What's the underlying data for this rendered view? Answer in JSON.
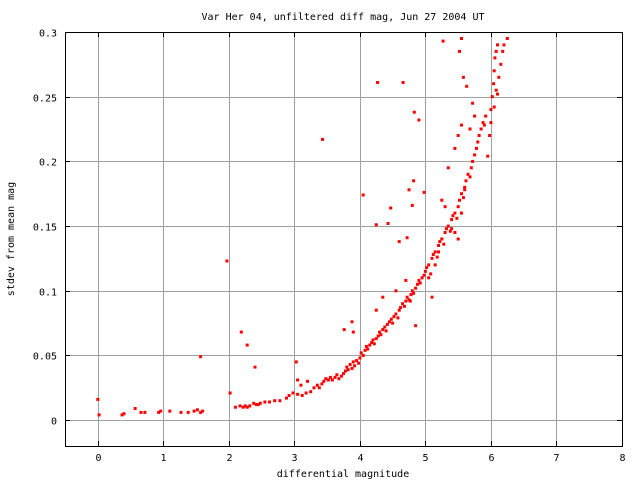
{
  "chart_data": {
    "type": "scatter",
    "title": "Var Her 04, unfiltered diff mag, Jun 27 2004 UT",
    "xlabel": "differential magnitude",
    "ylabel": "stdev from mean mag",
    "xlim": [
      -0.5,
      8
    ],
    "ylim": [
      -0.02,
      0.3
    ],
    "xticks": [
      0,
      1,
      2,
      3,
      4,
      5,
      6,
      7,
      8
    ],
    "yticks": [
      0,
      0.05,
      0.1,
      0.15,
      0.2,
      0.25,
      0.3
    ],
    "xtick_labels": [
      "0",
      "1",
      "2",
      "3",
      "4",
      "5",
      "6",
      "7",
      "8"
    ],
    "ytick_labels": [
      "0",
      "0.05",
      "0.1",
      "0.15",
      "0.2",
      "0.25",
      "0.3"
    ],
    "grid": true,
    "marker_color": "#ff0000",
    "series": [
      {
        "points": [
          [
            0.0,
            0.016
          ],
          [
            0.02,
            0.004
          ],
          [
            0.37,
            0.004
          ],
          [
            0.4,
            0.005
          ],
          [
            0.57,
            0.009
          ],
          [
            0.66,
            0.006
          ],
          [
            0.72,
            0.006
          ],
          [
            0.93,
            0.006
          ],
          [
            0.96,
            0.007
          ],
          [
            1.1,
            0.007
          ],
          [
            1.27,
            0.006
          ],
          [
            1.38,
            0.006
          ],
          [
            1.47,
            0.007
          ],
          [
            1.52,
            0.008
          ],
          [
            1.57,
            0.006
          ],
          [
            1.6,
            0.007
          ],
          [
            1.57,
            0.049
          ],
          [
            1.97,
            0.123
          ],
          [
            2.02,
            0.021
          ],
          [
            2.1,
            0.01
          ],
          [
            2.17,
            0.011
          ],
          [
            2.22,
            0.01
          ],
          [
            2.25,
            0.011
          ],
          [
            2.28,
            0.01
          ],
          [
            2.32,
            0.011
          ],
          [
            2.38,
            0.013
          ],
          [
            2.42,
            0.012
          ],
          [
            2.45,
            0.012
          ],
          [
            2.48,
            0.013
          ],
          [
            2.4,
            0.041
          ],
          [
            2.19,
            0.068
          ],
          [
            2.28,
            0.058
          ],
          [
            2.55,
            0.014
          ],
          [
            2.62,
            0.014
          ],
          [
            2.7,
            0.015
          ],
          [
            2.78,
            0.015
          ],
          [
            2.88,
            0.017
          ],
          [
            2.92,
            0.019
          ],
          [
            2.98,
            0.021
          ],
          [
            3.03,
            0.045
          ],
          [
            3.05,
            0.031
          ],
          [
            3.1,
            0.027
          ],
          [
            3.05,
            0.02
          ],
          [
            3.12,
            0.019
          ],
          [
            3.18,
            0.021
          ],
          [
            3.2,
            0.03
          ],
          [
            3.25,
            0.022
          ],
          [
            3.3,
            0.025
          ],
          [
            3.35,
            0.027
          ],
          [
            3.38,
            0.025
          ],
          [
            3.42,
            0.028
          ],
          [
            3.45,
            0.03
          ],
          [
            3.48,
            0.032
          ],
          [
            3.52,
            0.031
          ],
          [
            3.55,
            0.033
          ],
          [
            3.58,
            0.031
          ],
          [
            3.62,
            0.033
          ],
          [
            3.65,
            0.035
          ],
          [
            3.68,
            0.032
          ],
          [
            3.72,
            0.034
          ],
          [
            3.75,
            0.036
          ],
          [
            3.78,
            0.038
          ],
          [
            3.8,
            0.041
          ],
          [
            3.82,
            0.039
          ],
          [
            3.85,
            0.043
          ],
          [
            3.88,
            0.04
          ],
          [
            3.9,
            0.045
          ],
          [
            3.92,
            0.042
          ],
          [
            3.95,
            0.046
          ],
          [
            3.98,
            0.044
          ],
          [
            4.0,
            0.048
          ],
          [
            3.43,
            0.217
          ],
          [
            3.76,
            0.07
          ],
          [
            3.88,
            0.076
          ],
          [
            3.9,
            0.068
          ],
          [
            4.02,
            0.052
          ],
          [
            4.05,
            0.05
          ],
          [
            4.08,
            0.054
          ],
          [
            4.1,
            0.057
          ],
          [
            4.12,
            0.055
          ],
          [
            4.15,
            0.058
          ],
          [
            4.18,
            0.06
          ],
          [
            4.2,
            0.062
          ],
          [
            4.22,
            0.059
          ],
          [
            4.25,
            0.063
          ],
          [
            4.28,
            0.065
          ],
          [
            4.3,
            0.068
          ],
          [
            4.32,
            0.066
          ],
          [
            4.35,
            0.07
          ],
          [
            4.38,
            0.072
          ],
          [
            4.4,
            0.069
          ],
          [
            4.42,
            0.074
          ],
          [
            4.45,
            0.076
          ],
          [
            4.48,
            0.078
          ],
          [
            4.5,
            0.075
          ],
          [
            4.52,
            0.08
          ],
          [
            4.55,
            0.082
          ],
          [
            4.58,
            0.079
          ],
          [
            4.6,
            0.085
          ],
          [
            4.62,
            0.087
          ],
          [
            4.65,
            0.09
          ],
          [
            4.68,
            0.088
          ],
          [
            4.7,
            0.092
          ],
          [
            4.72,
            0.095
          ],
          [
            4.75,
            0.093
          ],
          [
            4.78,
            0.097
          ],
          [
            4.8,
            0.1
          ],
          [
            4.82,
            0.098
          ],
          [
            4.85,
            0.102
          ],
          [
            4.88,
            0.105
          ],
          [
            4.9,
            0.108
          ],
          [
            4.92,
            0.106
          ],
          [
            4.95,
            0.11
          ],
          [
            4.98,
            0.112
          ],
          [
            4.05,
            0.174
          ],
          [
            4.25,
            0.151
          ],
          [
            4.27,
            0.261
          ],
          [
            4.43,
            0.152
          ],
          [
            4.47,
            0.164
          ],
          [
            4.6,
            0.138
          ],
          [
            4.66,
            0.261
          ],
          [
            4.72,
            0.141
          ],
          [
            4.75,
            0.178
          ],
          [
            4.8,
            0.166
          ],
          [
            4.82,
            0.185
          ],
          [
            4.83,
            0.238
          ],
          [
            4.9,
            0.232
          ],
          [
            4.98,
            0.176
          ],
          [
            4.25,
            0.085
          ],
          [
            4.35,
            0.095
          ],
          [
            4.55,
            0.1
          ],
          [
            4.7,
            0.108
          ],
          [
            4.77,
            0.092
          ],
          [
            4.85,
            0.073
          ],
          [
            5.0,
            0.115
          ],
          [
            5.02,
            0.118
          ],
          [
            5.05,
            0.12
          ],
          [
            5.08,
            0.113
          ],
          [
            5.1,
            0.125
          ],
          [
            5.12,
            0.128
          ],
          [
            5.15,
            0.13
          ],
          [
            5.18,
            0.126
          ],
          [
            5.2,
            0.135
          ],
          [
            5.22,
            0.138
          ],
          [
            5.25,
            0.14
          ],
          [
            5.28,
            0.136
          ],
          [
            5.3,
            0.145
          ],
          [
            5.32,
            0.148
          ],
          [
            5.35,
            0.15
          ],
          [
            5.38,
            0.146
          ],
          [
            5.4,
            0.155
          ],
          [
            5.42,
            0.158
          ],
          [
            5.45,
            0.16
          ],
          [
            5.48,
            0.156
          ],
          [
            5.5,
            0.165
          ],
          [
            5.52,
            0.17
          ],
          [
            5.55,
            0.175
          ],
          [
            5.58,
            0.172
          ],
          [
            5.6,
            0.18
          ],
          [
            5.62,
            0.185
          ],
          [
            5.65,
            0.19
          ],
          [
            5.68,
            0.188
          ],
          [
            5.7,
            0.195
          ],
          [
            5.72,
            0.2
          ],
          [
            5.75,
            0.205
          ],
          [
            5.78,
            0.21
          ],
          [
            5.8,
            0.215
          ],
          [
            5.82,
            0.22
          ],
          [
            5.85,
            0.225
          ],
          [
            5.88,
            0.23
          ],
          [
            5.9,
            0.228
          ],
          [
            5.92,
            0.235
          ],
          [
            5.05,
            0.11
          ],
          [
            5.1,
            0.095
          ],
          [
            5.15,
            0.12
          ],
          [
            5.2,
            0.13
          ],
          [
            5.25,
            0.17
          ],
          [
            5.3,
            0.165
          ],
          [
            5.35,
            0.195
          ],
          [
            5.45,
            0.21
          ],
          [
            5.5,
            0.22
          ],
          [
            5.55,
            0.228
          ],
          [
            5.58,
            0.265
          ],
          [
            5.52,
            0.285
          ],
          [
            5.55,
            0.295
          ],
          [
            5.27,
            0.293
          ],
          [
            5.63,
            0.258
          ],
          [
            5.68,
            0.225
          ],
          [
            5.72,
            0.245
          ],
          [
            5.75,
            0.235
          ],
          [
            5.4,
            0.148
          ],
          [
            5.45,
            0.145
          ],
          [
            5.5,
            0.14
          ],
          [
            5.55,
            0.16
          ],
          [
            5.6,
            0.178
          ],
          [
            5.95,
            0.204
          ],
          [
            6.0,
            0.24
          ],
          [
            6.02,
            0.25
          ],
          [
            6.04,
            0.26
          ],
          [
            6.05,
            0.27
          ],
          [
            6.06,
            0.28
          ],
          [
            6.08,
            0.285
          ],
          [
            6.1,
            0.29
          ],
          [
            6.12,
            0.265
          ],
          [
            6.15,
            0.275
          ],
          [
            6.18,
            0.285
          ],
          [
            6.2,
            0.29
          ],
          [
            6.25,
            0.295
          ],
          [
            6.05,
            0.242
          ],
          [
            6.08,
            0.255
          ],
          [
            6.1,
            0.252
          ],
          [
            5.98,
            0.22
          ],
          [
            6.0,
            0.23
          ]
        ]
      }
    ]
  }
}
